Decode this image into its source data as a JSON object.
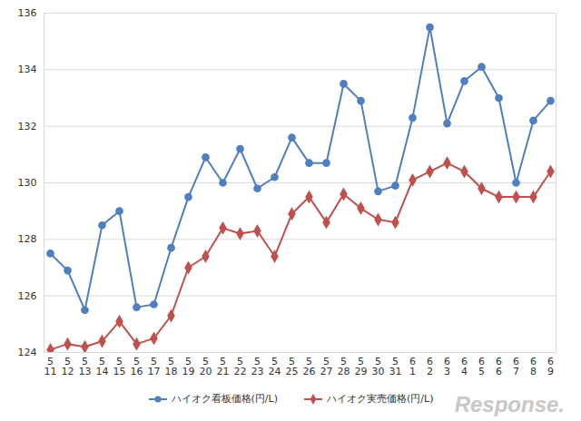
{
  "chart_data": {
    "type": "line",
    "categories": [
      "5\n11",
      "5\n12",
      "5\n13",
      "5\n14",
      "5\n15",
      "5\n16",
      "5\n17",
      "5\n18",
      "5\n19",
      "5\n20",
      "5\n21",
      "5\n22",
      "5\n23",
      "5\n24",
      "5\n25",
      "5\n26",
      "5\n27",
      "5\n28",
      "5\n29",
      "5\n30",
      "5\n31",
      "6\n1",
      "6\n2",
      "6\n3",
      "6\n4",
      "6\n5",
      "6\n6",
      "6\n7",
      "6\n8",
      "6\n9"
    ],
    "series": [
      {
        "name": "ハイオク看板価格(円/L)",
        "color": "#4f7fbf",
        "marker": "circle",
        "values": [
          127.5,
          126.9,
          125.5,
          128.5,
          129.0,
          125.6,
          125.7,
          127.7,
          129.5,
          130.9,
          130.0,
          131.2,
          129.8,
          130.2,
          131.6,
          130.7,
          130.7,
          133.5,
          132.9,
          129.7,
          129.9,
          132.3,
          135.5,
          132.1,
          133.6,
          134.1,
          133.0,
          130.0,
          132.2,
          132.9
        ]
      },
      {
        "name": "ハイオク実売価格(円/L)",
        "color": "#c0504d",
        "marker": "diamond",
        "values": [
          124.1,
          124.3,
          124.2,
          124.4,
          125.1,
          124.3,
          124.5,
          125.3,
          127.0,
          127.4,
          128.4,
          128.2,
          128.3,
          127.4,
          128.9,
          129.5,
          128.6,
          129.6,
          129.1,
          128.7,
          128.6,
          130.1,
          130.4,
          130.7,
          130.4,
          129.8,
          129.5,
          129.5,
          129.5,
          130.4
        ]
      }
    ],
    "ylim": [
      124,
      136
    ],
    "yticks": [
      124,
      126,
      128,
      130,
      132,
      134,
      136
    ],
    "grid": true,
    "legend": "bottom",
    "annotation": "Response."
  }
}
